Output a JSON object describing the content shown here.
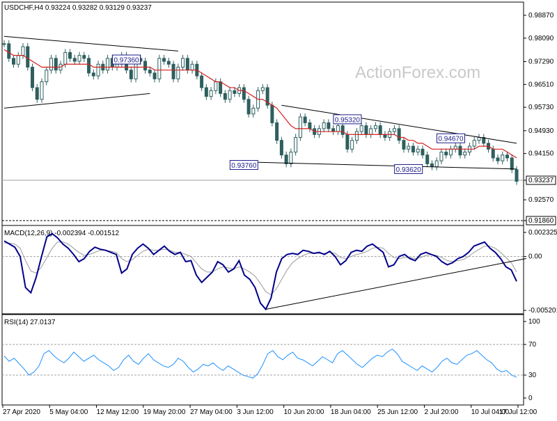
{
  "chart_data": [
    {
      "type": "candlestick",
      "pane": "price",
      "title": "USDCHF,H4  0.93224 0.93282 0.93129 0.93237",
      "watermark": "ActionForex.com",
      "ylim": [
        0.9186,
        0.9887
      ],
      "yticks": [
        "0.98870",
        "0.98090",
        "0.97290",
        "0.96510",
        "0.95730",
        "0.94930",
        "0.94150",
        "0.93237",
        "0.92570",
        "0.91860"
      ],
      "ytick_values": [
        0.9887,
        0.9809,
        0.9729,
        0.9651,
        0.9573,
        0.9493,
        0.9415,
        0.93237,
        0.9257,
        0.9186
      ],
      "current_price": 0.93237,
      "current_price_label": "0.93237",
      "bottom_level": 0.9186,
      "bottom_level_label": "0.91860",
      "close_series": [
        0.979,
        0.974,
        0.972,
        0.975,
        0.978,
        0.971,
        0.964,
        0.96,
        0.966,
        0.97,
        0.974,
        0.97,
        0.972,
        0.976,
        0.974,
        0.973,
        0.975,
        0.974,
        0.969,
        0.968,
        0.972,
        0.97,
        0.974,
        0.971,
        0.972,
        0.975,
        0.97,
        0.967,
        0.974,
        0.973,
        0.97,
        0.969,
        0.967,
        0.974,
        0.973,
        0.972,
        0.967,
        0.971,
        0.974,
        0.97,
        0.972,
        0.968,
        0.964,
        0.961,
        0.963,
        0.966,
        0.962,
        0.96,
        0.963,
        0.962,
        0.964,
        0.96,
        0.955,
        0.957,
        0.963,
        0.964,
        0.958,
        0.952,
        0.946,
        0.941,
        0.938,
        0.942,
        0.947,
        0.954,
        0.952,
        0.95,
        0.948,
        0.95,
        0.952,
        0.95,
        0.949,
        0.951,
        0.948,
        0.943,
        0.946,
        0.949,
        0.951,
        0.948,
        0.95,
        0.951,
        0.948,
        0.947,
        0.949,
        0.95,
        0.946,
        0.943,
        0.944,
        0.942,
        0.943,
        0.941,
        0.938,
        0.937,
        0.939,
        0.942,
        0.941,
        0.943,
        0.944,
        0.941,
        0.942,
        0.944,
        0.946,
        0.947,
        0.945,
        0.943,
        0.94,
        0.939,
        0.941,
        0.94,
        0.936,
        0.932
      ],
      "ma_series": [
        0.977,
        0.976,
        0.975,
        0.975,
        0.975,
        0.974,
        0.973,
        0.972,
        0.971,
        0.971,
        0.971,
        0.971,
        0.971,
        0.972,
        0.972,
        0.972,
        0.972,
        0.972,
        0.972,
        0.971,
        0.971,
        0.971,
        0.971,
        0.971,
        0.971,
        0.971,
        0.971,
        0.971,
        0.971,
        0.971,
        0.971,
        0.971,
        0.97,
        0.97,
        0.97,
        0.97,
        0.97,
        0.97,
        0.97,
        0.97,
        0.97,
        0.97,
        0.969,
        0.968,
        0.967,
        0.966,
        0.966,
        0.965,
        0.964,
        0.964,
        0.963,
        0.963,
        0.962,
        0.961,
        0.96,
        0.96,
        0.959,
        0.958,
        0.957,
        0.955,
        0.953,
        0.951,
        0.95,
        0.95,
        0.95,
        0.95,
        0.949,
        0.949,
        0.949,
        0.949,
        0.949,
        0.949,
        0.949,
        0.948,
        0.948,
        0.948,
        0.948,
        0.948,
        0.948,
        0.948,
        0.948,
        0.948,
        0.948,
        0.948,
        0.947,
        0.947,
        0.946,
        0.946,
        0.945,
        0.945,
        0.944,
        0.943,
        0.943,
        0.943,
        0.943,
        0.943,
        0.943,
        0.943,
        0.943,
        0.943,
        0.943,
        0.944,
        0.944,
        0.944,
        0.943,
        0.943,
        0.943,
        0.942,
        0.941,
        0.94
      ],
      "trendlines": [
        {
          "name": "upper-triangle-left",
          "from": [
            0,
            0.9815
          ],
          "to": [
            37,
            0.9765
          ]
        },
        {
          "name": "lower-triangle-left",
          "from": [
            0,
            0.957
          ],
          "to": [
            31,
            0.962
          ]
        },
        {
          "name": "upper-wedge-right",
          "from": [
            59,
            0.958
          ],
          "to": [
            109,
            0.945
          ]
        },
        {
          "name": "support-right",
          "from": [
            54,
            0.9385
          ],
          "to": [
            109,
            0.9362
          ]
        }
      ],
      "annotations": [
        {
          "label": "0.97360",
          "x": 26,
          "price": 0.9736
        },
        {
          "label": "0.93760",
          "x": 51,
          "price": 0.9376
        },
        {
          "label": "0.95320",
          "x": 73,
          "price": 0.9532
        },
        {
          "label": "0.93620",
          "x": 86,
          "price": 0.9362
        },
        {
          "label": "0.94670",
          "x": 95,
          "price": 0.9467
        }
      ]
    },
    {
      "type": "line",
      "pane": "macd",
      "title": "MACD(12,26,9) -0.002394 -0.001512",
      "ylim": [
        -0.005201,
        0.002325
      ],
      "yticks": [
        "0.002325",
        "0.00",
        "-0.005201"
      ],
      "ytick_values": [
        0.002325,
        0.0,
        -0.005201
      ],
      "macd_series": [
        0.0015,
        0.0012,
        0.0009,
        0.0,
        -0.003,
        -0.0035,
        -0.002,
        0.0,
        0.0019,
        0.0022,
        0.0018,
        0.0012,
        0.0008,
        0.0002,
        -0.0005,
        -0.0002,
        0.0005,
        0.0009,
        0.0007,
        0.0006,
        0.0004,
        0.0002,
        -0.0016,
        -0.0012,
        0.0002,
        0.0008,
        0.0012,
        0.0008,
        0.0002,
        0.0006,
        0.001,
        0.0005,
        0.0002,
        0.0004,
        -0.0005,
        -0.0004,
        -0.0018,
        -0.0025,
        -0.002,
        -0.0015,
        -0.0005,
        -0.0008,
        -0.0015,
        -0.0012,
        -0.0004,
        -0.0018,
        -0.0022,
        -0.003,
        -0.0045,
        -0.0051,
        -0.004,
        -0.0015,
        -0.0002,
        0.0002,
        0.0003,
        0.0002,
        0.0006,
        0.0005,
        0.0003,
        0.0004,
        0.0002,
        0.0005,
        0.0,
        -0.0008,
        -0.0004,
        0.0004,
        0.0006,
        0.0005,
        0.001,
        0.0012,
        0.0008,
        0.0004,
        -0.001,
        -0.0008,
        0.0,
        0.0002,
        -0.0002,
        -0.0004,
        0.0002,
        0.0004,
        0.0002,
        0.0,
        -0.0005,
        -0.0008,
        -0.0006,
        -0.0002,
        0.0,
        0.0004,
        0.001,
        0.0012,
        0.0014,
        0.0008,
        0.0004,
        -0.0002,
        -0.001,
        -0.0013,
        -0.0024
      ],
      "signal_series": [
        0.0013,
        0.0013,
        0.0012,
        0.0008,
        -0.0004,
        -0.0014,
        -0.0016,
        -0.001,
        -0.0001,
        0.0008,
        0.0014,
        0.0014,
        0.0012,
        0.0008,
        0.0004,
        0.0001,
        0.0002,
        0.0004,
        0.0006,
        0.0006,
        0.0005,
        0.0004,
        -0.0002,
        -0.0005,
        -0.0003,
        0.0001,
        0.0005,
        0.0007,
        0.0006,
        0.0006,
        0.0007,
        0.0006,
        0.0004,
        0.0004,
        0.0002,
        0.0,
        -0.0006,
        -0.0012,
        -0.0015,
        -0.0015,
        -0.0012,
        -0.001,
        -0.0011,
        -0.0012,
        -0.001,
        -0.0012,
        -0.0015,
        -0.0019,
        -0.0026,
        -0.0034,
        -0.0037,
        -0.0031,
        -0.0022,
        -0.0013,
        -0.0006,
        -0.0002,
        0.0001,
        0.0003,
        0.0003,
        0.0003,
        0.0003,
        0.0004,
        0.0003,
        -0.0001,
        -0.0002,
        0.0,
        0.0002,
        0.0003,
        0.0005,
        0.0008,
        0.0009,
        0.0008,
        0.0003,
        -0.0001,
        -0.0002,
        -0.0001,
        -0.0001,
        -0.0002,
        -0.0001,
        0.0001,
        0.0002,
        0.0001,
        -0.0001,
        -0.0004,
        -0.0005,
        -0.0004,
        -0.0003,
        0.0,
        0.0004,
        0.0007,
        0.001,
        0.001,
        0.0008,
        0.0004,
        -0.0001,
        -0.0006,
        -0.0015
      ],
      "trendline": {
        "from": [
          49,
          -0.0051
        ],
        "to": [
          96,
          -0.0006
        ]
      }
    },
    {
      "type": "line",
      "pane": "rsi",
      "title": "RSI(14) 27.0137",
      "ylim": [
        0,
        100
      ],
      "yticks": [
        "100",
        "70",
        "30",
        "0"
      ],
      "ytick_values": [
        100,
        70,
        30,
        0
      ],
      "levels": [
        70,
        30
      ],
      "rsi_series": [
        55,
        48,
        52,
        45,
        38,
        30,
        34,
        42,
        58,
        62,
        55,
        50,
        46,
        52,
        60,
        54,
        48,
        52,
        56,
        50,
        46,
        42,
        36,
        40,
        50,
        56,
        48,
        44,
        52,
        58,
        50,
        46,
        42,
        40,
        44,
        52,
        48,
        40,
        34,
        38,
        44,
        42,
        46,
        40,
        36,
        42,
        38,
        34,
        30,
        28,
        26,
        32,
        44,
        58,
        62,
        54,
        50,
        56,
        60,
        52,
        50,
        46,
        42,
        48,
        54,
        50,
        46,
        58,
        62,
        56,
        50,
        44,
        40,
        46,
        52,
        56,
        54,
        60,
        64,
        58,
        48,
        44,
        40,
        36,
        42,
        38,
        34,
        40,
        48,
        52,
        46,
        44,
        50,
        56,
        58,
        62,
        56,
        50,
        46,
        38,
        34,
        36,
        30,
        27
      ],
      "current": 27.0137
    }
  ],
  "x_axis": {
    "labels": [
      "27 Apr 2020",
      "5 May 04:00",
      "12 May 12:00",
      "19 May 20:00",
      "27 May 04:00",
      "3 Jun 12:00",
      "10 Jun 20:00",
      "18 Jun 04:00",
      "25 Jun 12:00",
      "2 Jul 20:00",
      "10 Jul 04:00",
      "17 Jul 12:00"
    ]
  },
  "colors": {
    "candle": "#2f5f5f",
    "ma": "#d42020",
    "macd": "#00008b",
    "signal": "#9a9a9a",
    "rsi": "#1e90ff",
    "trendline": "#000000",
    "tag_border": "#1a1a8a"
  }
}
